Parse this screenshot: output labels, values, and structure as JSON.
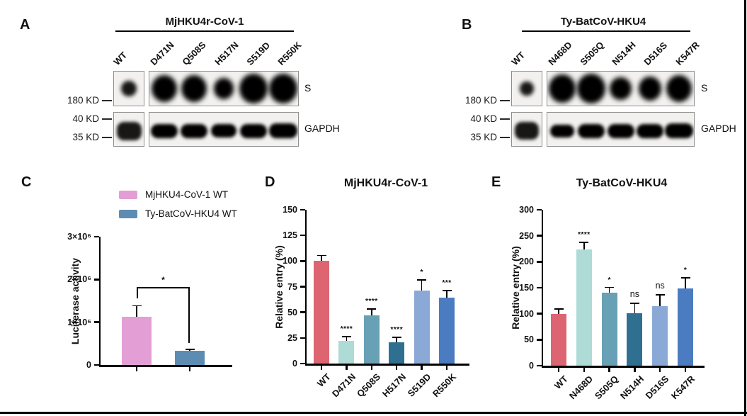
{
  "blots": [
    {
      "panel_label": "A",
      "title": "MjHKU4r-CoV-1",
      "lanes": [
        "WT",
        "D471N",
        "Q508S",
        "H517N",
        "S519D",
        "R550K"
      ],
      "row_targets": [
        "S",
        "GAPDH"
      ],
      "markers": [
        "180 KD",
        "40 KD",
        "35 KD"
      ],
      "s_band_scales": [
        0.6,
        1.0,
        1.0,
        0.8,
        1.12,
        1.12
      ],
      "gapdh_band_scales": [
        1.0,
        1.0,
        1.0,
        0.95,
        1.0,
        1.05
      ]
    },
    {
      "panel_label": "B",
      "title": "Ty-BatCoV-HKU4",
      "lanes": [
        "WT",
        "N468D",
        "S505Q",
        "N514H",
        "D516S",
        "K547R"
      ],
      "row_targets": [
        "S",
        "GAPDH"
      ],
      "markers": [
        "180 KD",
        "40 KD",
        "35 KD"
      ],
      "s_band_scales": [
        0.55,
        1.05,
        1.1,
        0.85,
        0.9,
        1.0
      ],
      "gapdh_band_scales": [
        0.95,
        0.9,
        1.0,
        1.0,
        1.0,
        1.05
      ]
    }
  ],
  "chart_data": [
    {
      "panel_label": "C",
      "type": "bar",
      "title": "",
      "ylabel": "Luciferase activity",
      "categories": [
        "MjHKU4-CoV-1 WT",
        "Ty-BatCoV-HKU4 WT"
      ],
      "values": [
        1120000,
        330000
      ],
      "errors": [
        280000,
        55000
      ],
      "annotations": [
        "",
        ""
      ],
      "bar_colors": [
        "#e49ed6",
        "#5d8cb3"
      ],
      "ylim": [
        0,
        3000000
      ],
      "yticks": [
        0,
        1000000,
        2000000,
        3000000
      ],
      "ytick_labels": [
        "0",
        "1×10⁶",
        "2×10⁶",
        "3×10⁶"
      ],
      "show_xtick_labels": false,
      "legend": [
        {
          "label": "MjHKU4-CoV-1 WT",
          "color": "#e49ed6"
        },
        {
          "label": "Ty-BatCoV-HKU4 WT",
          "color": "#5d8cb3"
        }
      ],
      "comparison": {
        "label": "*",
        "from": 0,
        "to": 1,
        "y": 1820000,
        "left_drop_to": 1560000,
        "right_drop_to": 520000
      }
    },
    {
      "panel_label": "D",
      "type": "bar",
      "title": "MjHKU4r-CoV-1",
      "ylabel": "Relative entry (%)",
      "categories": [
        "WT",
        "D471N",
        "Q508S",
        "H517N",
        "S519D",
        "R550K"
      ],
      "values": [
        100,
        22,
        47,
        21,
        71,
        64
      ],
      "errors": [
        6,
        5,
        7,
        5,
        11,
        8
      ],
      "annotations": [
        "",
        "****",
        "****",
        "****",
        "*",
        "***"
      ],
      "bar_colors": [
        "#dd6571",
        "#aedbd5",
        "#68a0b6",
        "#2f7090",
        "#8ba9d6",
        "#4b7cc2"
      ],
      "ylim": [
        0,
        150
      ],
      "yticks": [
        0,
        25,
        50,
        75,
        100,
        125,
        150
      ],
      "ytick_labels": [
        "0",
        "25",
        "50",
        "75",
        "100",
        "125",
        "150"
      ],
      "show_xtick_labels": true
    },
    {
      "panel_label": "E",
      "type": "bar",
      "title": "Ty-BatCoV-HKU4",
      "ylabel": "Relative entry (%)",
      "categories": [
        "WT",
        "N468D",
        "S505Q",
        "N514H",
        "D516S",
        "K547R"
      ],
      "values": [
        100,
        224,
        140,
        101,
        115,
        148
      ],
      "errors": [
        10,
        15,
        12,
        20,
        23,
        22
      ],
      "annotations": [
        "",
        "****",
        "*",
        "ns",
        "ns",
        "*"
      ],
      "bar_colors": [
        "#dd6571",
        "#aedbd5",
        "#68a0b6",
        "#2f7090",
        "#8ba9d6",
        "#4b7cc2"
      ],
      "ylim": [
        0,
        300
      ],
      "yticks": [
        0,
        50,
        100,
        150,
        200,
        250,
        300
      ],
      "ytick_labels": [
        "0",
        "50",
        "100",
        "150",
        "200",
        "250",
        "300"
      ],
      "show_xtick_labels": true
    }
  ]
}
